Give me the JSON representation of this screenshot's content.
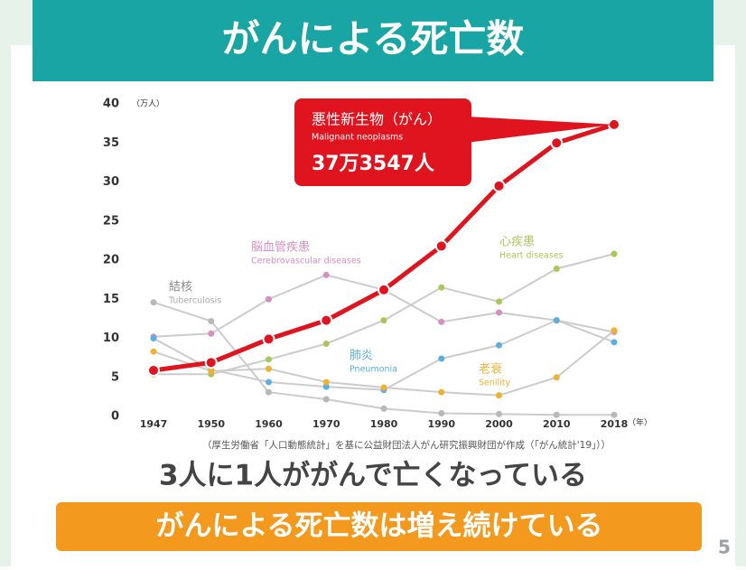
{
  "slide": {
    "title": "がんによる死亡数",
    "message": "3人に1人ががんで亡くなっている",
    "banner": "がんによる死亡数は増え続けている",
    "page_number": "5"
  },
  "chart_data": {
    "type": "line",
    "y_unit": "（万人）",
    "x_unit": "（年）",
    "source": "（厚生労働省「人口動態統計」を基に公益財団法人がん研究振興財団が作成（「がん統計'19」））",
    "categories": [
      "1947",
      "1950",
      "1960",
      "1970",
      "1980",
      "1990",
      "2000",
      "2010",
      "2018"
    ],
    "ylim": [
      0,
      40
    ],
    "yticks": [
      0,
      5,
      10,
      15,
      20,
      25,
      30,
      35,
      40
    ],
    "callout": {
      "title": "悪性新生物（がん）",
      "subtitle": "Malignant neoplasms",
      "value_text": "37万3547人"
    },
    "series": [
      {
        "name": "悪性新生物（がん）",
        "name_en": "Malignant neoplasms",
        "color": "#e0141e",
        "values": [
          5.9,
          6.9,
          9.9,
          12.3,
          16.2,
          21.8,
          29.5,
          35.0,
          37.3547
        ]
      },
      {
        "name": "脳血管疾患",
        "name_en": "Cerebrovascular diseases",
        "color": "#d68fc2",
        "values": [
          10.2,
          10.6,
          15.0,
          18.1,
          16.2,
          12.1,
          13.3,
          12.3,
          10.8
        ]
      },
      {
        "name": "心疾患",
        "name_en": "Heart diseases",
        "color": "#a8c85a",
        "values": [
          5.4,
          5.4,
          7.3,
          9.3,
          12.3,
          16.5,
          14.7,
          18.9,
          20.8
        ]
      },
      {
        "name": "結核",
        "name_en": "Tuberculosis",
        "color": "#b8b8b8",
        "values": [
          14.6,
          12.2,
          3.1,
          2.2,
          1.0,
          0.4,
          0.3,
          0.2,
          0.2
        ]
      },
      {
        "name": "肺炎",
        "name_en": "Pneumonia",
        "color": "#5aaee0",
        "values": [
          10.0,
          6.0,
          4.4,
          3.8,
          3.4,
          7.4,
          9.1,
          12.3,
          9.5
        ]
      },
      {
        "name": "老衰",
        "name_en": "Senility",
        "color": "#f0b030",
        "values": [
          8.3,
          5.8,
          6.1,
          4.4,
          3.7,
          3.1,
          2.7,
          5.0,
          11.0
        ]
      }
    ]
  }
}
